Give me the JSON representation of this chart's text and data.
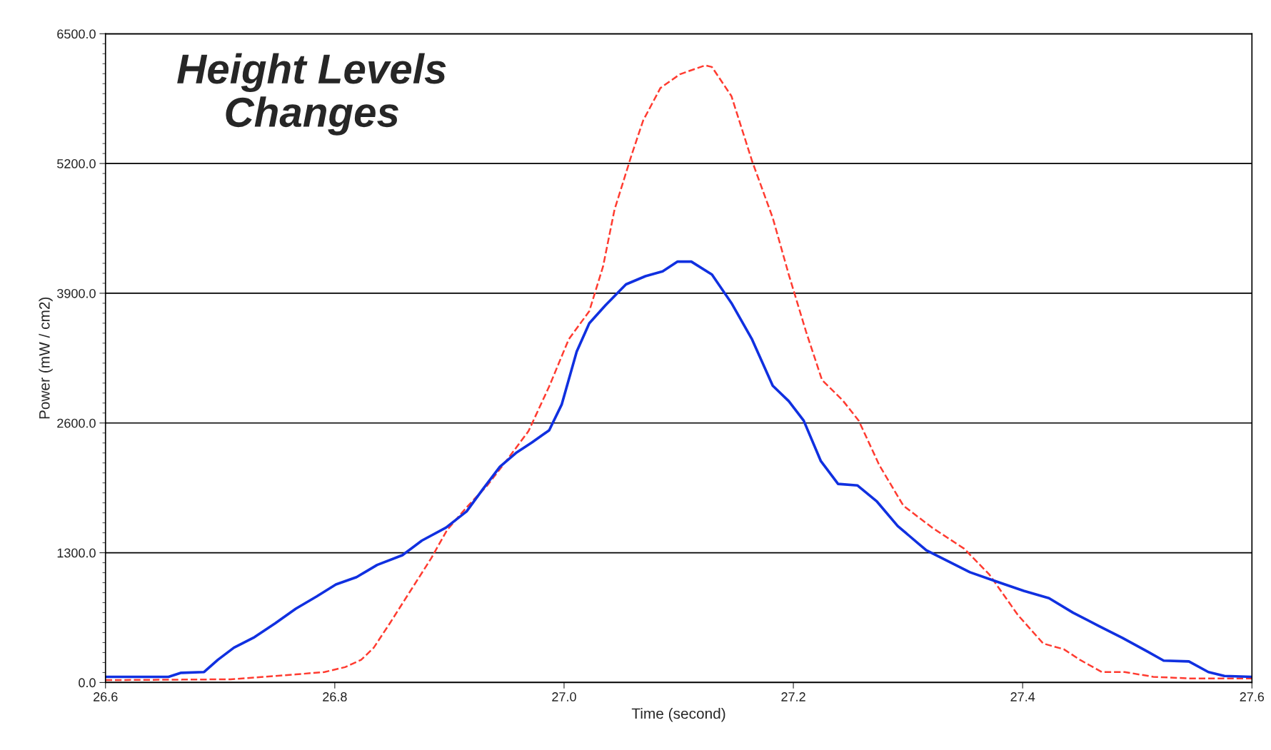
{
  "chart_data": {
    "type": "line",
    "annotations": [
      "Height Levels\nChanges"
    ],
    "xlabel": "Time (second)",
    "ylabel": "Power (mW / cm2)",
    "xlim": [
      26.6,
      27.6
    ],
    "xticks": [
      26.6,
      26.8,
      {
        "value": 27.0,
        "label": "27.0"
      },
      27.2,
      27.4,
      27.6
    ],
    "ylim": [
      0,
      6500
    ],
    "yticks": [
      {
        "value": 0,
        "label": "0.0"
      },
      {
        "value": 1300,
        "label": "1300.0"
      },
      {
        "value": 2600,
        "label": "2600.0"
      },
      {
        "value": 3900,
        "label": "3900.0"
      },
      {
        "value": 5200,
        "label": "5200.0"
      },
      {
        "value": 6500,
        "label": "6500.0"
      }
    ],
    "grid": "y",
    "marker": "none",
    "series": [
      {
        "color": "#ff3b30",
        "line_style": "dashed",
        "x": [
          26.6,
          26.709,
          26.766,
          26.791,
          26.809,
          26.823,
          26.834,
          26.848,
          26.866,
          26.884,
          26.898,
          26.915,
          26.933,
          26.951,
          26.969,
          26.987,
          27.004,
          27.022,
          27.034,
          27.044,
          27.059,
          27.069,
          27.084,
          27.101,
          27.123,
          27.129,
          27.146,
          27.164,
          27.182,
          27.196,
          27.211,
          27.225,
          27.243,
          27.257,
          27.275,
          27.296,
          27.321,
          27.349,
          27.371,
          27.396,
          27.418,
          27.436,
          27.45,
          27.469,
          27.489,
          27.514,
          27.545,
          27.6
        ],
        "values": [
          24,
          32,
          81,
          105,
          154,
          227,
          349,
          593,
          918,
          1243,
          1528,
          1755,
          1974,
          2242,
          2519,
          2966,
          3437,
          3721,
          4168,
          4737,
          5289,
          5631,
          5956,
          6094,
          6183,
          6167,
          5875,
          5224,
          4656,
          4087,
          3518,
          3031,
          2827,
          2624,
          2177,
          1771,
          1552,
          1341,
          1081,
          674,
          390,
          333,
          227,
          105,
          105,
          57,
          41,
          41
        ]
      },
      {
        "color": "#1030e0",
        "line_style": "solid",
        "x": [
          26.6,
          26.655,
          26.666,
          26.686,
          26.698,
          26.712,
          26.73,
          26.748,
          26.766,
          26.784,
          26.801,
          26.819,
          26.837,
          26.859,
          26.876,
          26.897,
          26.915,
          26.929,
          26.944,
          26.958,
          26.972,
          26.987,
          26.998,
          27.011,
          27.022,
          27.036,
          27.054,
          27.071,
          27.086,
          27.099,
          27.111,
          27.129,
          27.146,
          27.164,
          27.182,
          27.196,
          27.209,
          27.224,
          27.239,
          27.256,
          27.273,
          27.291,
          27.316,
          27.337,
          27.354,
          27.376,
          27.401,
          27.423,
          27.444,
          27.466,
          27.487,
          27.509,
          27.523,
          27.545,
          27.562,
          27.576,
          27.6
        ],
        "values": [
          57,
          57,
          97,
          105,
          227,
          349,
          455,
          593,
          739,
          861,
          983,
          1056,
          1178,
          1276,
          1422,
          1552,
          1714,
          1934,
          2161,
          2299,
          2405,
          2527,
          2787,
          3315,
          3599,
          3778,
          3989,
          4071,
          4119,
          4217,
          4217,
          4087,
          3802,
          3437,
          2974,
          2819,
          2624,
          2218,
          1990,
          1974,
          1812,
          1568,
          1324,
          1203,
          1105,
          1016,
          918,
          845,
          699,
          569,
          447,
          309,
          219,
          211,
          105,
          65,
          57
        ]
      }
    ]
  }
}
